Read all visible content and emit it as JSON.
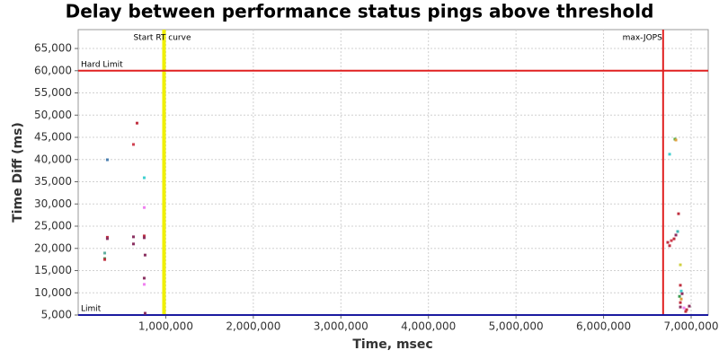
{
  "chart_data": {
    "type": "scatter",
    "title": "Delay between performance status pings above threshold",
    "xlabel": "Time, msec",
    "ylabel": "Time Diff (ms)",
    "x": [
      333000,
      303000,
      303000,
      303000,
      333000,
      333000,
      672000,
      631000,
      631000,
      631000,
      754000,
      754000,
      754000,
      754000,
      764000,
      754000,
      754000,
      764000,
      6815000,
      6826000,
      6754000,
      6856000,
      6733000,
      6754000,
      6774000,
      6805000,
      6826000,
      6846000,
      6877000,
      6877000,
      6887000,
      6897000,
      6867000,
      6887000,
      6877000,
      6877000,
      6918000,
      6949000,
      6979000,
      6938000
    ],
    "values": [
      39950,
      18950,
      17700,
      17500,
      22500,
      22200,
      48200,
      43400,
      22600,
      21000,
      35900,
      29200,
      22800,
      22400,
      18500,
      13300,
      11900,
      5400,
      44600,
      44400,
      41200,
      27800,
      21350,
      20600,
      21750,
      22150,
      23000,
      23800,
      16300,
      11700,
      10400,
      9800,
      9200,
      8600,
      7800,
      6800,
      6600,
      6200,
      7000,
      5800
    ],
    "colors": [
      "#4a7fb0",
      "#5fb0a0",
      "#3a9a50",
      "#c03040",
      "#c03040",
      "#8a3060",
      "#c03040",
      "#d04050",
      "#8a3060",
      "#8a3060",
      "#40d0d0",
      "#f080f0",
      "#c03040",
      "#8a3060",
      "#8a3060",
      "#8a3060",
      "#f080f0",
      "#8a3060",
      "#4ab040",
      "#e0a040",
      "#40d0d0",
      "#c03040",
      "#c03040",
      "#c03040",
      "#d04050",
      "#c03040",
      "#8a3060",
      "#40b0b0",
      "#d0d040",
      "#c03040",
      "#40d0d0",
      "#8a3060",
      "#3a9a50",
      "#e0a040",
      "#c03040",
      "#8a3060",
      "#f080f0",
      "#c03040",
      "#8a3060",
      "#c03040"
    ],
    "xlim": [
      0,
      7195000
    ],
    "ylim": [
      5000,
      69250
    ],
    "xticks": [
      {
        "value": 1000000,
        "label": "1,000,000"
      },
      {
        "value": 2000000,
        "label": "2,000,000"
      },
      {
        "value": 3000000,
        "label": "3,000,000"
      },
      {
        "value": 4000000,
        "label": "4,000,000"
      },
      {
        "value": 5000000,
        "label": "5,000,000"
      },
      {
        "value": 6000000,
        "label": "6,000,000"
      },
      {
        "value": 7000000,
        "label": "7,000,000"
      }
    ],
    "yticks": [
      {
        "value": 5000,
        "label": "5,000"
      },
      {
        "value": 10000,
        "label": "10,000"
      },
      {
        "value": 15000,
        "label": "15,000"
      },
      {
        "value": 20000,
        "label": "20,000"
      },
      {
        "value": 25000,
        "label": "25,000"
      },
      {
        "value": 30000,
        "label": "30,000"
      },
      {
        "value": 35000,
        "label": "35,000"
      },
      {
        "value": 40000,
        "label": "40,000"
      },
      {
        "value": 45000,
        "label": "45,000"
      },
      {
        "value": 50000,
        "label": "50,000"
      },
      {
        "value": 55000,
        "label": "55,000"
      },
      {
        "value": 60000,
        "label": "60,000"
      },
      {
        "value": 65000,
        "label": "65,000"
      }
    ],
    "grid": true,
    "vlines": [
      {
        "value": 980000,
        "label": "Start RT curve",
        "color": "#f0f000"
      },
      {
        "value": 6680000,
        "label": "max-JOPS",
        "color": "#e02020"
      }
    ],
    "hlines": [
      {
        "value": 60000,
        "label": "Hard Limit",
        "color": "#e02020"
      },
      {
        "value": 5000,
        "label": "Limit",
        "color": "#1a1aa0"
      }
    ]
  }
}
